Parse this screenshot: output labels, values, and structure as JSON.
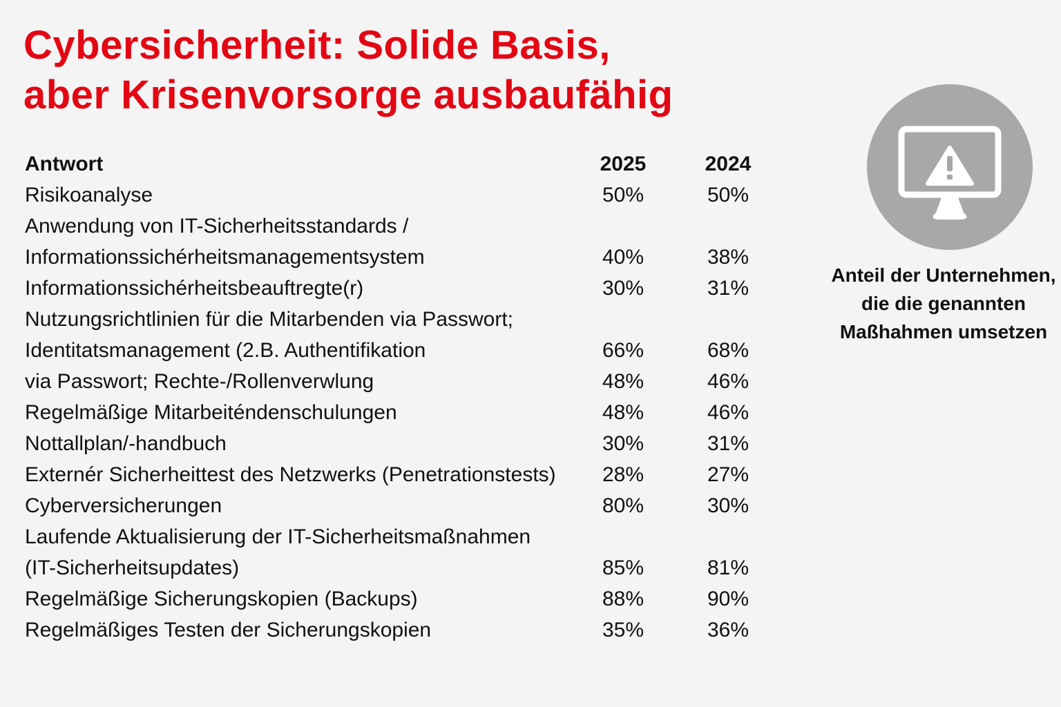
{
  "title": [
    "Cybersicherheit: Solide Basis,",
    "aber Krisenvorsorge ausbaufähig"
  ],
  "caption": [
    "Anteil der Unternehmen,",
    "die die genannten",
    "Maßhahmen umsetzen"
  ],
  "icon": "monitor-warning-icon",
  "colors": {
    "title": "#e30613",
    "icon_circle": "#a8a8a8",
    "background": "#f4f4f4"
  },
  "chart_data": {
    "type": "table",
    "columns": [
      "Antwort",
      "2025",
      "2024"
    ],
    "rows": [
      {
        "lines": [
          "Risikoanalyse"
        ],
        "v2025": "50%",
        "v2024": "50%"
      },
      {
        "lines": [
          "Anwendung von IT-Sicherheitsstandards /",
          "Informationssichérheitsmanagementsystem"
        ],
        "v2025": "40%",
        "v2024": "38%"
      },
      {
        "lines": [
          "Informationssichérheitsbeauftregte(r)"
        ],
        "v2025": "30%",
        "v2024": "31%"
      },
      {
        "lines": [
          "Nutzungsrichtlinien für die Mitarbenden via Passwort;",
          "Identitatsmanagement (2.B. Authentifikation"
        ],
        "v2025": "66%",
        "v2024": "68%"
      },
      {
        "lines": [
          "via Passwort; Rechte-/Rollenverwlung"
        ],
        "v2025": "48%",
        "v2024": "46%"
      },
      {
        "lines": [
          "Regelmäßige Mitarbeiténdenschulungen"
        ],
        "v2025": "48%",
        "v2024": "46%"
      },
      {
        "lines": [
          "Nottallplan/-handbuch"
        ],
        "v2025": "30%",
        "v2024": "31%"
      },
      {
        "lines": [
          "Externér Sicherheittest  des Netzwerks (Penetrationstests)"
        ],
        "v2025": "28%",
        "v2024": "27%"
      },
      {
        "lines": [
          "Cyberversicherungen"
        ],
        "v2025": "80%",
        "v2024": "30%"
      },
      {
        "lines": [
          "Laufende Aktualisierung der IT-Sicherheitsmaßnahmen",
          "(IT-Sicherheitsupdates)"
        ],
        "v2025": "85%",
        "v2024": "81%"
      },
      {
        "lines": [
          "Regelmäßige Sicherungskopien (Backups)"
        ],
        "v2025": "88%",
        "v2024": "90%"
      },
      {
        "lines": [
          "Regelmäßiges Testen der Sicherungskopien"
        ],
        "v2025": "35%",
        "v2024": "36%"
      }
    ]
  }
}
